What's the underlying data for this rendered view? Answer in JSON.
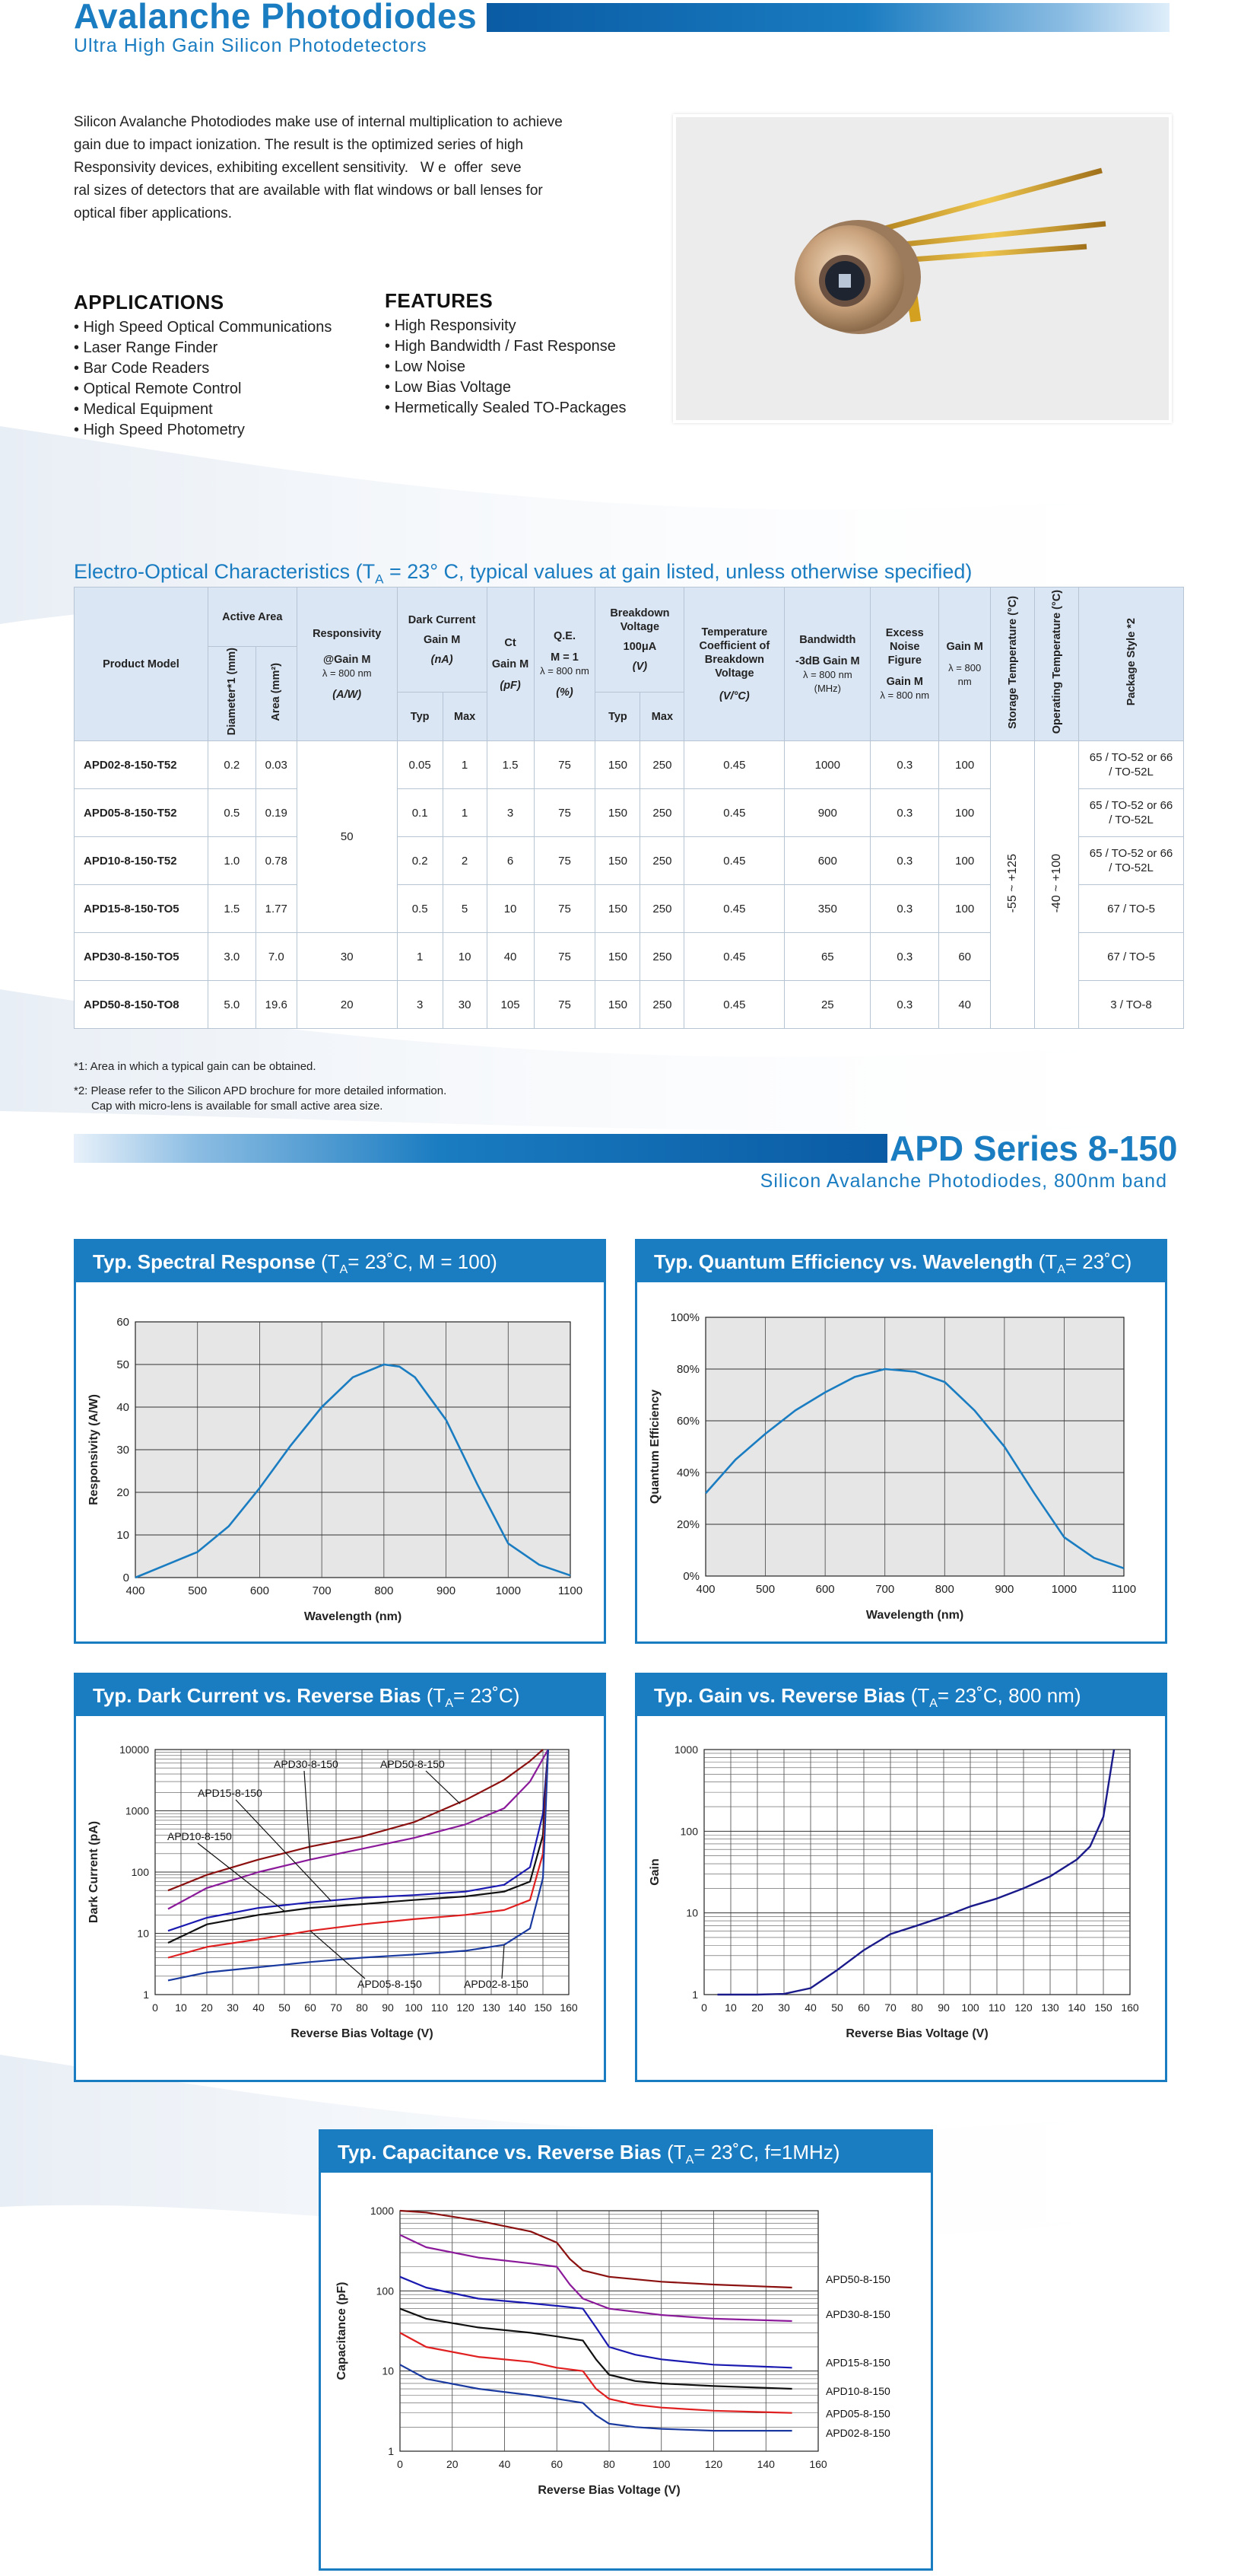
{
  "header": {
    "title": "Avalanche Photodiodes",
    "subtitle": "Ultra High Gain Silicon Photodetectors"
  },
  "intro": {
    "lines": [
      "Silicon Avalanche Photodiodes make use of internal multiplication to achieve",
      "gain due to impact ionization. The result is the optimized series of high",
      "Responsivity devices, exhibiting excellent sensitivity.   W e  offer  seve",
      "ral sizes of detectors that are available with flat windows or ball lenses for",
      "optical fiber applications."
    ]
  },
  "applications": {
    "heading": "APPLICATIONS",
    "items": [
      "High Speed Optical Communications",
      "Laser Range Finder",
      "Bar Code Readers",
      "Optical Remote Control",
      "Medical Equipment",
      "High Speed Photometry"
    ]
  },
  "features": {
    "heading": "FEATURES",
    "items": [
      "High Responsivity",
      "High Bandwidth / Fast Response",
      "Low Noise",
      "Low Bias Voltage",
      "Hermetically Sealed TO-Packages"
    ]
  },
  "eo_table": {
    "title_main": "Electro-Optical Characteristics",
    "title_cond_pre": " (T",
    "title_cond_sub": "A",
    "title_cond_post": " = 23° C, typical values at gain listed, unless otherwise specified)",
    "headers": {
      "product_model": "Product Model",
      "active_area": "Active Area",
      "diameter": "Diameter*1 (mm)",
      "area": "Area (mm²)",
      "responsivity": "Responsivity",
      "responsivity_cond1": "@Gain M",
      "responsivity_cond2": "λ = 800 nm",
      "responsivity_unit": "(A/W)",
      "dark_current": "Dark Current",
      "dark_cond": "Gain M",
      "dark_unit": "(nA)",
      "typ": "Typ",
      "max": "Max",
      "ct": "Ct",
      "ct_cond": "Gain M",
      "ct_unit": "(pF)",
      "qe": "Q.E.",
      "qe_cond1": "M = 1",
      "qe_cond2": "λ = 800 nm",
      "qe_unit": "(%)",
      "breakdown": "Breakdown Voltage",
      "breakdown_cond": "100μA",
      "breakdown_unit": "(V)",
      "temp_coeff": "Temperature Coefficient of Breakdown Voltage",
      "temp_coeff_unit": "(V/°C)",
      "bandwidth": "Bandwidth",
      "bandwidth_cond1": "-3dB Gain M",
      "bandwidth_cond2": "λ = 800 nm",
      "bandwidth_unit": "(MHz)",
      "noise": "Excess Noise Figure",
      "noise_cond1": "Gain M",
      "noise_cond2": "λ = 800 nm",
      "gain": "Gain M",
      "gain_cond": "λ = 800 nm",
      "storage_temp": "Storage Temperature (°C)",
      "operating_temp": "Operating Temperature (°C)",
      "package": "Package Style *2"
    },
    "rows": [
      {
        "model": "APD02-8-150-T52",
        "diameter": "0.2",
        "area": "0.03",
        "dark_typ": "0.05",
        "dark_max": "1",
        "ct": "1.5",
        "qe": "75",
        "bv_typ": "150",
        "bv_max": "250",
        "temp_coeff": "0.45",
        "bandwidth": "1000",
        "noise": "0.3",
        "gain": "100",
        "package": "65 / TO-52 or 66 / TO-52L"
      },
      {
        "model": "APD05-8-150-T52",
        "diameter": "0.5",
        "area": "0.19",
        "dark_typ": "0.1",
        "dark_max": "1",
        "ct": "3",
        "qe": "75",
        "bv_typ": "150",
        "bv_max": "250",
        "temp_coeff": "0.45",
        "bandwidth": "900",
        "noise": "0.3",
        "gain": "100",
        "package": "65 / TO-52 or 66 / TO-52L"
      },
      {
        "model": "APD10-8-150-T52",
        "diameter": "1.0",
        "area": "0.78",
        "dark_typ": "0.2",
        "dark_max": "2",
        "ct": "6",
        "qe": "75",
        "bv_typ": "150",
        "bv_max": "250",
        "temp_coeff": "0.45",
        "bandwidth": "600",
        "noise": "0.3",
        "gain": "100",
        "package": "65 / TO-52 or 66 / TO-52L"
      },
      {
        "model": "APD15-8-150-TO5",
        "diameter": "1.5",
        "area": "1.77",
        "dark_typ": "0.5",
        "dark_max": "5",
        "ct": "10",
        "qe": "75",
        "bv_typ": "150",
        "bv_max": "250",
        "temp_coeff": "0.45",
        "bandwidth": "350",
        "noise": "0.3",
        "gain": "100",
        "package": "67 / TO-5"
      },
      {
        "model": "APD30-8-150-TO5",
        "diameter": "3.0",
        "area": "7.0",
        "dark_typ": "1",
        "dark_max": "10",
        "ct": "40",
        "qe": "75",
        "bv_typ": "150",
        "bv_max": "250",
        "temp_coeff": "0.45",
        "bandwidth": "65",
        "noise": "0.3",
        "gain": "60",
        "package": "67 / TO-5"
      },
      {
        "model": "APD50-8-150-TO8",
        "diameter": "5.0",
        "area": "19.6",
        "dark_typ": "3",
        "dark_max": "30",
        "ct": "105",
        "qe": "75",
        "bv_typ": "150",
        "bv_max": "250",
        "temp_coeff": "0.45",
        "bandwidth": "25",
        "noise": "0.3",
        "gain": "40",
        "package": "3 / TO-8"
      }
    ],
    "responsivity_group1": "50",
    "responsivity_apd30": "30",
    "responsivity_apd50": "20",
    "storage_temp_value": "-55 ~ +125",
    "operating_temp_value": "-40 ~ +100"
  },
  "notes": {
    "note1": "*1: Area in which a typical gain can be obtained.",
    "note2a": "*2: Please refer to the Silicon APD brochure for more detailed information.",
    "note2b": "Cap with micro-lens is available for small active area size."
  },
  "series": {
    "title": "APD Series 8-150",
    "subtitle": "Silicon Avalanche Photodiodes, 800nm band"
  },
  "chart_data": [
    {
      "type": "line",
      "title_main": "Typ. Spectral Response",
      "title_cond_pre": " (T",
      "title_cond_sub": "A",
      "title_cond_post": "= 23˚C, M = 100)",
      "xlabel": "Wavelength (nm)",
      "ylabel": "Responsivity (A/W)",
      "xlim": [
        400,
        1100
      ],
      "ylim": [
        0,
        60
      ],
      "xticks": [
        "400",
        "500",
        "600",
        "700",
        "800",
        "900",
        "1000",
        "1100"
      ],
      "yticks": [
        "0",
        "10",
        "20",
        "30",
        "40",
        "50",
        "60"
      ],
      "grid": true,
      "color": "#1a7cc1",
      "x": [
        400,
        450,
        500,
        550,
        600,
        650,
        700,
        750,
        800,
        825,
        850,
        900,
        950,
        1000,
        1050,
        1100
      ],
      "y": [
        0,
        3,
        6,
        12,
        21,
        31,
        40,
        47,
        50,
        49.5,
        47,
        37,
        22,
        8,
        3,
        0.5
      ]
    },
    {
      "type": "line",
      "title_main": "Typ. Quantum Efficiency vs. Wavelength",
      "title_cond_pre": " (T",
      "title_cond_sub": "A",
      "title_cond_post": "= 23˚C)",
      "xlabel": "Wavelength (nm)",
      "ylabel": "Quantum Efficiency",
      "xlim": [
        400,
        1100
      ],
      "ylim": [
        0,
        100
      ],
      "xticks": [
        "400",
        "500",
        "600",
        "700",
        "800",
        "900",
        "1000",
        "1100"
      ],
      "yticks": [
        "0%",
        "20%",
        "40%",
        "60%",
        "80%",
        "100%"
      ],
      "grid": true,
      "color": "#1a7cc1",
      "x": [
        400,
        450,
        500,
        550,
        600,
        650,
        700,
        750,
        800,
        850,
        900,
        950,
        1000,
        1050,
        1100
      ],
      "y": [
        32,
        45,
        55,
        64,
        71,
        77,
        80,
        79,
        75,
        64,
        50,
        32,
        15,
        7,
        3
      ]
    },
    {
      "type": "line",
      "log_y": true,
      "title_main": "Typ. Dark Current vs. Reverse Bias",
      "title_cond_pre": " (T",
      "title_cond_sub": "A",
      "title_cond_post": "= 23˚C)",
      "xlabel": "Reverse Bias Voltage (V)",
      "ylabel": "Dark Current (pA)",
      "xlim": [
        0,
        160
      ],
      "ylim": [
        1,
        10000
      ],
      "xticks": [
        "0",
        "10",
        "20",
        "30",
        "40",
        "50",
        "60",
        "70",
        "80",
        "90",
        "100",
        "110",
        "120",
        "130",
        "140",
        "150",
        "160"
      ],
      "yticks": [
        "1",
        "10",
        "100",
        "1000",
        "10000"
      ],
      "grid": true,
      "series": [
        {
          "name": "APD50-8-150",
          "color": "#8b1010",
          "x": [
            5,
            20,
            40,
            60,
            80,
            100,
            120,
            135,
            145,
            150
          ],
          "y": [
            50,
            90,
            160,
            260,
            380,
            650,
            1500,
            3200,
            6500,
            10000
          ]
        },
        {
          "name": "APD30-8-150",
          "color": "#8b1a9a",
          "x": [
            5,
            20,
            40,
            60,
            80,
            100,
            120,
            135,
            145,
            152
          ],
          "y": [
            25,
            55,
            100,
            160,
            240,
            360,
            600,
            1100,
            3000,
            10000
          ]
        },
        {
          "name": "APD15-8-150",
          "color": "#1a1ab0",
          "x": [
            5,
            20,
            40,
            60,
            80,
            100,
            120,
            135,
            145,
            150,
            152
          ],
          "y": [
            11,
            18,
            26,
            32,
            38,
            42,
            48,
            62,
            120,
            900,
            10000
          ]
        },
        {
          "name": "APD10-8-150",
          "color": "#111111",
          "x": [
            5,
            20,
            40,
            60,
            80,
            100,
            120,
            135,
            145,
            150,
            152
          ],
          "y": [
            7,
            14,
            20,
            26,
            30,
            35,
            40,
            48,
            70,
            400,
            10000
          ]
        },
        {
          "name": "APD05-8-150",
          "color": "#e02020",
          "x": [
            5,
            20,
            40,
            60,
            80,
            100,
            120,
            135,
            145,
            150,
            152
          ],
          "y": [
            4,
            6,
            8,
            11,
            14,
            17,
            20,
            24,
            35,
            200,
            10000
          ]
        },
        {
          "name": "APD02-8-150",
          "color": "#1a3aa0",
          "x": [
            5,
            20,
            40,
            60,
            80,
            100,
            120,
            135,
            145,
            150,
            152
          ],
          "y": [
            1.7,
            2.3,
            2.8,
            3.4,
            4,
            4.5,
            5.2,
            6.5,
            12,
            80,
            10000
          ]
        }
      ]
    },
    {
      "type": "line",
      "log_y": true,
      "title_main": "Typ. Gain vs. Reverse Bias",
      "title_cond_pre": " (T",
      "title_cond_sub": "A",
      "title_cond_post": "= 23˚C, 800 nm)",
      "xlabel": "Reverse Bias Voltage (V)",
      "ylabel": "Gain",
      "xlim": [
        0,
        160
      ],
      "ylim": [
        1,
        1000
      ],
      "xticks": [
        "0",
        "10",
        "20",
        "30",
        "40",
        "50",
        "60",
        "70",
        "80",
        "90",
        "100",
        "110",
        "120",
        "130",
        "140",
        "150",
        "160"
      ],
      "yticks": [
        "1",
        "10",
        "100",
        "1000"
      ],
      "grid": true,
      "color": "#1a1a8a",
      "x": [
        5,
        20,
        30,
        40,
        50,
        60,
        70,
        80,
        90,
        100,
        110,
        120,
        130,
        140,
        145,
        150,
        154
      ],
      "y": [
        1,
        1,
        1.02,
        1.2,
        2,
        3.5,
        5.5,
        7,
        9,
        12,
        15,
        20,
        28,
        45,
        65,
        150,
        1000
      ]
    },
    {
      "type": "line",
      "log_y": true,
      "title_main": "Typ. Capacitance vs. Reverse Bias",
      "title_cond_pre": " (T",
      "title_cond_sub": "A",
      "title_cond_post": "= 23˚C, f=1MHz)",
      "xlabel": "Reverse Bias Voltage (V)",
      "ylabel": "Capacitance (pF)",
      "xlim": [
        0,
        160
      ],
      "ylim": [
        1,
        1000
      ],
      "xticks": [
        "0",
        "20",
        "40",
        "60",
        "80",
        "100",
        "120",
        "140",
        "160"
      ],
      "yticks": [
        "1",
        "10",
        "100",
        "1000"
      ],
      "grid": true,
      "series": [
        {
          "name": "APD50-8-150",
          "color": "#8b1010",
          "x": [
            0,
            10,
            30,
            50,
            60,
            65,
            70,
            80,
            100,
            120,
            150
          ],
          "y": [
            1000,
            950,
            750,
            550,
            400,
            250,
            180,
            150,
            130,
            120,
            110
          ]
        },
        {
          "name": "APD30-8-150",
          "color": "#8b1a9a",
          "x": [
            0,
            10,
            30,
            50,
            60,
            65,
            70,
            80,
            100,
            120,
            150
          ],
          "y": [
            500,
            350,
            260,
            220,
            200,
            120,
            80,
            60,
            50,
            45,
            42
          ]
        },
        {
          "name": "APD15-8-150",
          "color": "#1a1ab0",
          "x": [
            0,
            10,
            30,
            50,
            60,
            70,
            75,
            80,
            90,
            100,
            120,
            150
          ],
          "y": [
            150,
            110,
            80,
            70,
            65,
            60,
            35,
            20,
            16,
            14,
            12,
            11
          ]
        },
        {
          "name": "APD10-8-150",
          "color": "#111111",
          "x": [
            0,
            10,
            30,
            50,
            60,
            70,
            75,
            80,
            90,
            100,
            120,
            150
          ],
          "y": [
            60,
            45,
            35,
            30,
            27,
            24,
            14,
            9,
            7.5,
            7,
            6.5,
            6
          ]
        },
        {
          "name": "APD05-8-150",
          "color": "#e02020",
          "x": [
            0,
            10,
            30,
            50,
            60,
            70,
            75,
            80,
            90,
            100,
            120,
            150
          ],
          "y": [
            30,
            20,
            15,
            13,
            11,
            10,
            6,
            4.5,
            3.8,
            3.5,
            3.2,
            3
          ]
        },
        {
          "name": "APD02-8-150",
          "color": "#1a3aa0",
          "x": [
            0,
            10,
            30,
            50,
            60,
            70,
            75,
            80,
            90,
            100,
            120,
            150
          ],
          "y": [
            12,
            8,
            6,
            5,
            4.5,
            4,
            2.8,
            2.2,
            2,
            1.9,
            1.8,
            1.8
          ]
        }
      ]
    }
  ]
}
